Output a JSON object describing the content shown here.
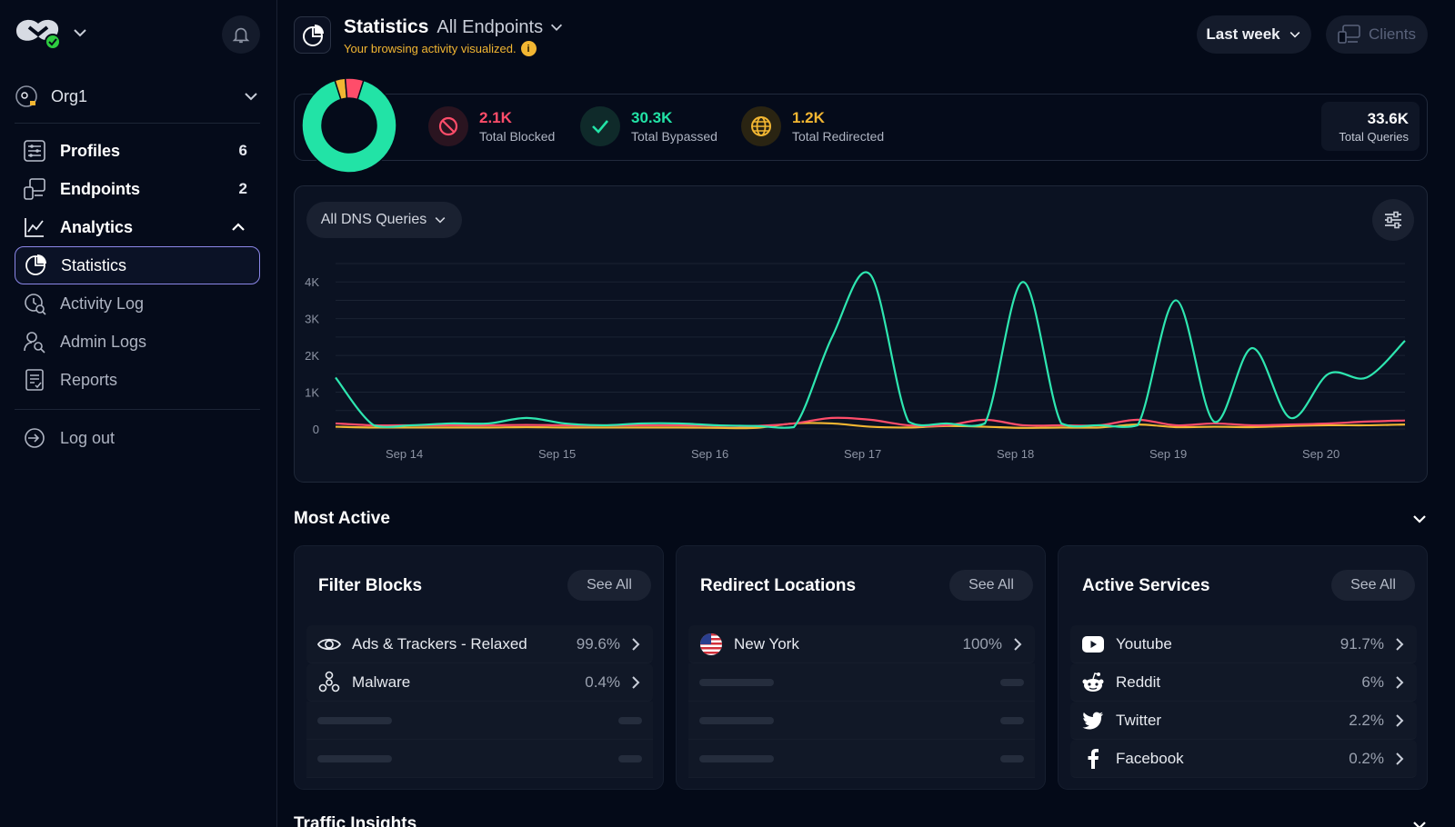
{
  "sidebar": {
    "org": "Org1",
    "items": [
      {
        "label": "Profiles",
        "count": "6",
        "icon": "profiles-icon"
      },
      {
        "label": "Endpoints",
        "count": "2",
        "icon": "endpoints-icon"
      },
      {
        "label": "Analytics",
        "count": "",
        "icon": "analytics-icon"
      },
      {
        "label": "Statistics",
        "count": "",
        "icon": "pie-chart-icon"
      },
      {
        "label": "Activity Log",
        "count": "",
        "icon": "activity-log-icon"
      },
      {
        "label": "Admin Logs",
        "count": "",
        "icon": "admin-logs-icon"
      },
      {
        "label": "Reports",
        "count": "",
        "icon": "reports-icon"
      }
    ],
    "logout": "Log out"
  },
  "header": {
    "title": "Statistics",
    "scope": "All Endpoints",
    "subtitle": "Your browsing activity visualized.",
    "info_glyph": "i",
    "period": "Last week",
    "clients": "Clients"
  },
  "summary": {
    "blocked": {
      "value": "2.1K",
      "label": "Total Blocked",
      "color": "#ff4d6a"
    },
    "bypassed": {
      "value": "30.3K",
      "label": "Total Bypassed",
      "color": "#22e3a6"
    },
    "redirected": {
      "value": "1.2K",
      "label": "Total Redirected",
      "color": "#f2b632"
    },
    "total": {
      "value": "33.6K",
      "label": "Total Queries"
    }
  },
  "chart": {
    "filter": "All DNS Queries"
  },
  "chart_data": {
    "type": "line",
    "x": [
      0,
      0.25,
      0.5,
      0.75,
      1,
      1.25,
      1.5,
      1.75,
      2,
      2.25,
      2.5,
      2.75,
      3,
      3.25,
      3.5,
      3.75,
      4,
      4.25,
      4.5,
      4.75,
      5,
      5.25,
      5.5,
      5.75,
      6,
      6.25,
      6.5,
      6.75,
      7
    ],
    "tick_labels": [
      "Sep 14",
      "Sep 15",
      "Sep 16",
      "Sep 17",
      "Sep 18",
      "Sep 19",
      "Sep 20"
    ],
    "yticks": [
      "0",
      "1K",
      "2K",
      "3K",
      "4K"
    ],
    "ylim": [
      0,
      4500
    ],
    "series": [
      {
        "color": "#2ee6b0",
        "values": [
          1400,
          100,
          100,
          150,
          150,
          300,
          150,
          100,
          150,
          150,
          100,
          80,
          50,
          2500,
          4200,
          200,
          150,
          150,
          4000,
          150,
          100,
          100,
          3500,
          200,
          2200,
          300,
          1500,
          1400,
          2400
        ]
      },
      {
        "color": "#ff4d6a",
        "values": [
          150,
          100,
          100,
          100,
          100,
          110,
          100,
          100,
          100,
          100,
          90,
          80,
          150,
          300,
          250,
          100,
          100,
          250,
          100,
          100,
          100,
          250,
          100,
          150,
          100,
          120,
          150,
          200,
          230
        ]
      },
      {
        "color": "#f2b632",
        "values": [
          60,
          40,
          40,
          40,
          40,
          50,
          40,
          40,
          40,
          40,
          30,
          30,
          150,
          150,
          60,
          40,
          80,
          60,
          30,
          40,
          40,
          120,
          50,
          60,
          50,
          80,
          100,
          100,
          120
        ]
      }
    ]
  },
  "most_active": {
    "title": "Most Active",
    "see_all": "See All",
    "filter_blocks": {
      "title": "Filter Blocks",
      "rows": [
        {
          "label": "Ads & Trackers - Relaxed",
          "value": "99.6%",
          "icon": "eye-icon"
        },
        {
          "label": "Malware",
          "value": "0.4%",
          "icon": "biohazard-icon"
        }
      ]
    },
    "redirect_locations": {
      "title": "Redirect Locations",
      "rows": [
        {
          "label": "New York",
          "value": "100%",
          "icon": "us-flag-icon"
        }
      ]
    },
    "active_services": {
      "title": "Active Services",
      "rows": [
        {
          "label": "Youtube",
          "value": "91.7%",
          "icon": "youtube-icon"
        },
        {
          "label": "Reddit",
          "value": "6%",
          "icon": "reddit-icon"
        },
        {
          "label": "Twitter",
          "value": "2.2%",
          "icon": "twitter-icon"
        },
        {
          "label": "Facebook",
          "value": "0.2%",
          "icon": "facebook-icon"
        }
      ]
    }
  },
  "traffic_insights": {
    "title": "Traffic Insights"
  },
  "donut_data": {
    "segments": [
      {
        "label": "Total Bypassed",
        "value": 30.3,
        "color": "#22e3a6"
      },
      {
        "label": "Total Blocked",
        "value": 2.1,
        "color": "#ff4d6a"
      },
      {
        "label": "Total Redirected",
        "value": 1.2,
        "color": "#f2b632"
      }
    ]
  }
}
